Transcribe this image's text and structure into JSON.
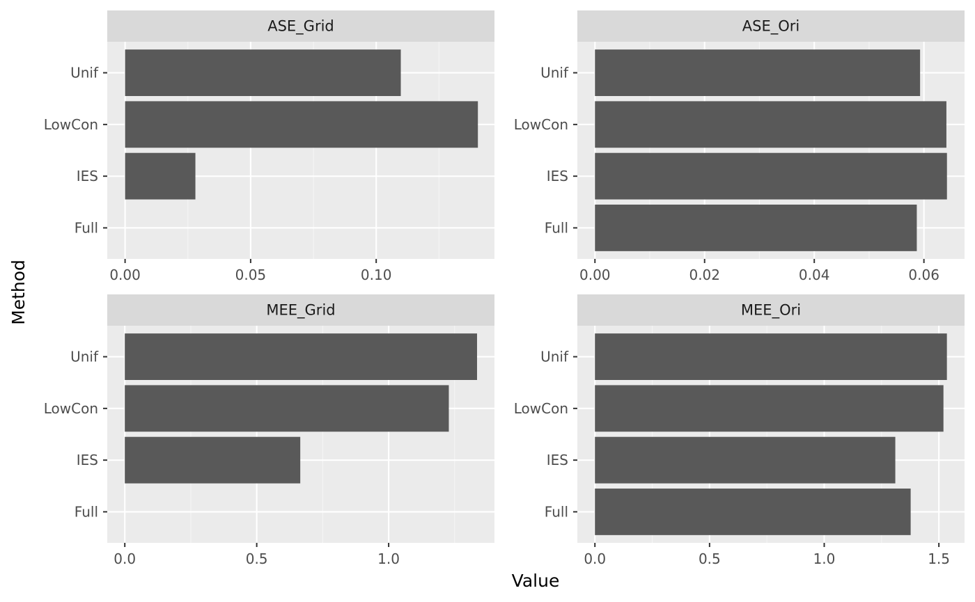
{
  "chart_data": {
    "type": "bar",
    "orientation": "horizontal",
    "xlabel": "Value",
    "ylabel": "Method",
    "grid": true,
    "facets": [
      {
        "title": "ASE_Grid",
        "categories": [
          "Full",
          "IES",
          "LowCon",
          "Unif"
        ],
        "values": [
          0,
          0.028,
          0.1405,
          0.1098
        ],
        "xlim": [
          -0.0071,
          0.1471
        ],
        "xticks": [
          0,
          0.05,
          0.1
        ],
        "xtick_labels": [
          "0.00",
          "0.05",
          "0.10"
        ]
      },
      {
        "title": "ASE_Ori",
        "categories": [
          "Full",
          "IES",
          "LowCon",
          "Unif"
        ],
        "values": [
          0.0587,
          0.0642,
          0.0641,
          0.0593
        ],
        "xlim": [
          -0.00321,
          0.06741
        ],
        "xticks": [
          0,
          0.02,
          0.04,
          0.06
        ],
        "xtick_labels": [
          "0.00",
          "0.02",
          "0.04",
          "0.06"
        ]
      },
      {
        "title": "MEE_Grid",
        "categories": [
          "Full",
          "IES",
          "LowCon",
          "Unif"
        ],
        "values": [
          0,
          0.665,
          1.228,
          1.335
        ],
        "xlim": [
          -0.0665,
          1.401
        ],
        "xticks": [
          0,
          0.5,
          1.0
        ],
        "xtick_labels": [
          "0.0",
          "0.5",
          "1.0"
        ]
      },
      {
        "title": "MEE_Ori",
        "categories": [
          "Full",
          "IES",
          "LowCon",
          "Unif"
        ],
        "values": [
          1.377,
          1.31,
          1.52,
          1.535
        ],
        "xlim": [
          -0.0766,
          1.612
        ],
        "xticks": [
          0,
          0.5,
          1.0,
          1.5
        ],
        "xtick_labels": [
          "0.0",
          "0.5",
          "1.0",
          "1.5"
        ]
      }
    ]
  },
  "colors": {
    "bar": "#595959",
    "panel_background": "#ebebeb",
    "strip_background": "#d9d9d9",
    "grid_major": "#ffffff",
    "grid_minor": "#f5f5f5",
    "tick_text": "#4d4d4d",
    "title_text": "#000000"
  }
}
